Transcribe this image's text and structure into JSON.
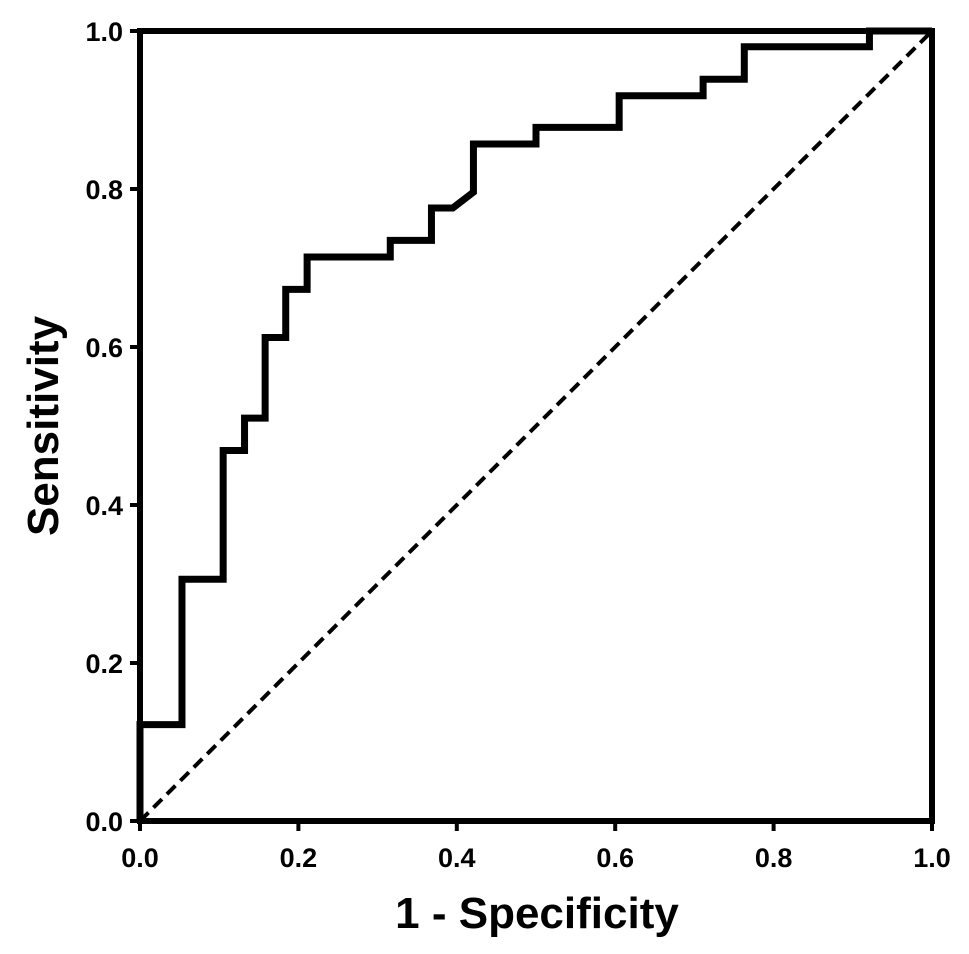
{
  "chart_data": {
    "type": "line",
    "title": "",
    "xlabel": "1 - Specificity",
    "ylabel": "Sensitivity",
    "xlim": [
      0,
      1
    ],
    "ylim": [
      0,
      1
    ],
    "x_ticks": [
      "0.0",
      "0.2",
      "0.4",
      "0.6",
      "0.8",
      "1.0"
    ],
    "y_ticks": [
      "0.0",
      "0.2",
      "0.4",
      "0.6",
      "0.8",
      "1.0"
    ],
    "grid": false,
    "legend": "none",
    "series": [
      {
        "style": "solid",
        "color": "#000000",
        "points": [
          [
            0.0,
            0.0
          ],
          [
            0.0,
            0.122
          ],
          [
            0.053,
            0.122
          ],
          [
            0.053,
            0.306
          ],
          [
            0.105,
            0.306
          ],
          [
            0.105,
            0.469
          ],
          [
            0.132,
            0.469
          ],
          [
            0.132,
            0.51
          ],
          [
            0.158,
            0.51
          ],
          [
            0.158,
            0.612
          ],
          [
            0.184,
            0.612
          ],
          [
            0.184,
            0.673
          ],
          [
            0.211,
            0.673
          ],
          [
            0.211,
            0.714
          ],
          [
            0.316,
            0.714
          ],
          [
            0.316,
            0.735
          ],
          [
            0.368,
            0.735
          ],
          [
            0.368,
            0.776
          ],
          [
            0.395,
            0.776
          ],
          [
            0.421,
            0.796
          ],
          [
            0.421,
            0.857
          ],
          [
            0.5,
            0.857
          ],
          [
            0.5,
            0.878
          ],
          [
            0.605,
            0.878
          ],
          [
            0.605,
            0.918
          ],
          [
            0.711,
            0.918
          ],
          [
            0.711,
            0.939
          ],
          [
            0.763,
            0.939
          ],
          [
            0.763,
            0.98
          ],
          [
            0.921,
            0.98
          ],
          [
            0.921,
            1.0
          ],
          [
            1.0,
            1.0
          ]
        ]
      },
      {
        "style": "dashed",
        "color": "#000000",
        "points": [
          [
            0.0,
            0.0
          ],
          [
            1.0,
            1.0
          ]
        ]
      }
    ]
  }
}
